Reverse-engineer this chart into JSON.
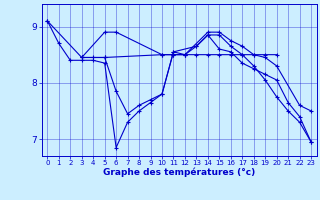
{
  "xlabel": "Graphe des températures (°c)",
  "background_color": "#cceeff",
  "line_color": "#0000cc",
  "ylim": [
    6.7,
    9.4
  ],
  "xlim": [
    -0.5,
    23.5
  ],
  "yticks": [
    7,
    8,
    9
  ],
  "xticks": [
    0,
    1,
    2,
    3,
    4,
    5,
    6,
    7,
    8,
    9,
    10,
    11,
    12,
    13,
    14,
    15,
    16,
    17,
    18,
    19,
    20,
    21,
    22,
    23
  ],
  "series": [
    {
      "x": [
        0,
        1,
        2,
        3,
        4,
        5,
        6,
        7,
        8,
        9,
        10,
        11,
        12,
        13,
        14,
        15,
        16,
        17,
        18,
        19,
        20,
        21,
        22,
        23
      ],
      "y": [
        9.1,
        8.7,
        8.4,
        8.4,
        8.4,
        8.35,
        6.85,
        7.3,
        7.5,
        7.65,
        7.8,
        8.55,
        8.5,
        8.65,
        8.85,
        8.6,
        8.55,
        8.35,
        8.25,
        8.15,
        8.05,
        7.65,
        7.4,
        6.95
      ]
    },
    {
      "x": [
        0,
        3,
        5,
        6,
        10,
        11,
        12,
        14,
        15,
        16,
        17,
        18,
        19,
        20,
        22,
        23
      ],
      "y": [
        9.1,
        8.45,
        8.9,
        8.9,
        8.5,
        8.5,
        8.5,
        8.9,
        8.9,
        8.75,
        8.65,
        8.5,
        8.45,
        8.3,
        7.6,
        7.5
      ]
    },
    {
      "x": [
        3,
        4,
        5,
        10,
        11,
        12,
        13,
        14,
        15,
        16,
        17,
        18,
        19,
        20
      ],
      "y": [
        8.45,
        8.45,
        8.45,
        8.5,
        8.5,
        8.5,
        8.5,
        8.5,
        8.5,
        8.5,
        8.5,
        8.5,
        8.5,
        8.5
      ]
    },
    {
      "x": [
        3,
        5,
        6,
        7,
        8,
        9,
        10,
        11,
        13,
        14,
        15,
        16,
        17,
        18,
        19,
        20,
        21,
        22,
        23
      ],
      "y": [
        8.45,
        8.45,
        7.85,
        7.45,
        7.6,
        7.7,
        7.8,
        8.55,
        8.65,
        8.85,
        8.85,
        8.65,
        8.5,
        8.3,
        8.05,
        7.75,
        7.5,
        7.3,
        6.95
      ]
    }
  ]
}
